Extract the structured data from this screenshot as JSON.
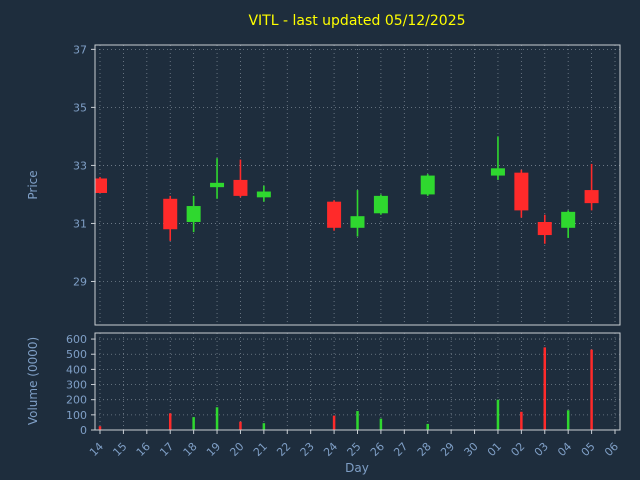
{
  "title": "VITL - last updated 05/12/2025",
  "axes": {
    "price_label": "Price",
    "volume_label": "Volume (0000)",
    "x_label": "Day"
  },
  "colors": {
    "background": "#1e2d3d",
    "title": "#ffff00",
    "axis_label": "#7f9fc6",
    "tick_label": "#7f9fc6",
    "spine": "#c9ced4",
    "grid": "#a7b2bd",
    "up": "#2fd82f",
    "down": "#ff2a2a"
  },
  "chart_data": {
    "type": "candlestick+volume",
    "title": "VITL - last updated 05/12/2025",
    "xlabel": "Day",
    "price_axis_label": "Price",
    "volume_axis_label": "Volume (0000)",
    "grid": true,
    "x_categories": [
      "14",
      "15",
      "16",
      "17",
      "18",
      "19",
      "20",
      "21",
      "22",
      "23",
      "24",
      "25",
      "26",
      "27",
      "28",
      "29",
      "30",
      "01",
      "02",
      "03",
      "04",
      "05",
      "06"
    ],
    "price_ticks": [
      29,
      31,
      33,
      35,
      37
    ],
    "price_ylim": [
      27.5,
      37.15
    ],
    "volume_ticks": [
      0,
      100,
      200,
      300,
      400,
      500,
      600
    ],
    "volume_ylim": [
      0,
      640
    ],
    "candles": [
      {
        "day": "14",
        "open": 32.55,
        "high": 32.6,
        "low": 32.05,
        "close": 32.05,
        "volume": 25
      },
      {
        "day": "17",
        "open": 31.85,
        "high": 31.95,
        "low": 30.4,
        "close": 30.8,
        "volume": 110
      },
      {
        "day": "18",
        "open": 31.05,
        "high": 31.95,
        "low": 30.7,
        "close": 31.6,
        "volume": 85
      },
      {
        "day": "19",
        "open": 32.25,
        "high": 33.25,
        "low": 31.85,
        "close": 32.4,
        "volume": 150
      },
      {
        "day": "20",
        "open": 32.5,
        "high": 33.2,
        "low": 31.9,
        "close": 31.95,
        "volume": 55
      },
      {
        "day": "21",
        "open": 31.9,
        "high": 32.3,
        "low": 31.75,
        "close": 32.1,
        "volume": 45
      },
      {
        "day": "24",
        "open": 31.75,
        "high": 31.8,
        "low": 30.75,
        "close": 30.85,
        "volume": 95
      },
      {
        "day": "25",
        "open": 30.85,
        "high": 32.15,
        "low": 30.55,
        "close": 31.25,
        "volume": 125
      },
      {
        "day": "26",
        "open": 31.35,
        "high": 32.0,
        "low": 31.3,
        "close": 31.95,
        "volume": 75
      },
      {
        "day": "28",
        "open": 32.0,
        "high": 32.7,
        "low": 31.95,
        "close": 32.65,
        "volume": 40
      },
      {
        "day": "01",
        "open": 32.65,
        "high": 34.0,
        "low": 32.5,
        "close": 32.9,
        "volume": 200
      },
      {
        "day": "02",
        "open": 32.75,
        "high": 32.85,
        "low": 31.2,
        "close": 31.45,
        "volume": 120
      },
      {
        "day": "03",
        "open": 31.05,
        "high": 31.3,
        "low": 30.3,
        "close": 30.6,
        "volume": 545
      },
      {
        "day": "04",
        "open": 30.85,
        "high": 31.45,
        "low": 30.5,
        "close": 31.4,
        "volume": 130
      },
      {
        "day": "05",
        "open": 32.15,
        "high": 33.05,
        "low": 31.45,
        "close": 31.7,
        "volume": 530
      }
    ]
  }
}
